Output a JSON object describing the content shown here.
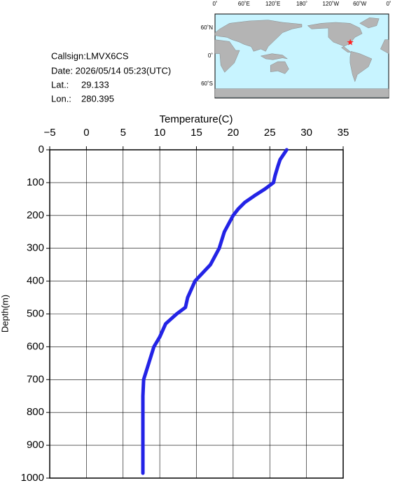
{
  "info": {
    "callsign": "Callsign:LMVX6CS",
    "date": "Date:  2026/05/14 05:23(UTC)",
    "lat_label": "Lat.:",
    "lat": 29.133,
    "lon_label": "Lon.:",
    "lon": 280.395
  },
  "map": {
    "lon_ticks": [
      {
        "value": 0,
        "label": "0˚"
      },
      {
        "value": 60,
        "label": "60˚E"
      },
      {
        "value": 120,
        "label": "120˚E"
      },
      {
        "value": 180,
        "label": "180˚"
      },
      {
        "value": 240,
        "label": "120˚W"
      },
      {
        "value": 300,
        "label": "60˚W"
      },
      {
        "value": 360,
        "label": "0˚"
      }
    ],
    "lat_ticks": [
      {
        "value": 60,
        "label": "60˚N"
      },
      {
        "value": 0,
        "label": "0˚"
      },
      {
        "value": -60,
        "label": "60˚S"
      }
    ]
  },
  "chart_data": {
    "type": "line",
    "x_label": "Temperature(C)",
    "y_label": "Depth(m)",
    "color": "#2323e6",
    "grid": true,
    "y_inverted": true,
    "xlim": [
      -5,
      35
    ],
    "xticks": [
      {
        "value": -5,
        "label": "−5"
      },
      0,
      5,
      10,
      15,
      20,
      25,
      30,
      35
    ],
    "ylim": [
      0,
      1000
    ],
    "yticks": [
      0,
      100,
      200,
      300,
      400,
      500,
      600,
      700,
      800,
      900,
      1000
    ],
    "x": [
      27.3,
      26.4,
      26.1,
      25.7,
      25.5,
      24.3,
      22.9,
      21.6,
      20.7,
      20.0,
      18.8,
      18.1,
      16.9,
      14.8,
      13.8,
      13.5,
      12.3,
      10.8,
      10.0,
      9.2,
      8.5,
      7.8,
      7.7,
      7.7,
      7.7,
      7.7,
      7.7
    ],
    "values": [
      0,
      30,
      50,
      80,
      100,
      120,
      140,
      160,
      180,
      200,
      250,
      300,
      350,
      400,
      450,
      480,
      500,
      530,
      570,
      600,
      650,
      700,
      750,
      800,
      900,
      950,
      985
    ]
  }
}
